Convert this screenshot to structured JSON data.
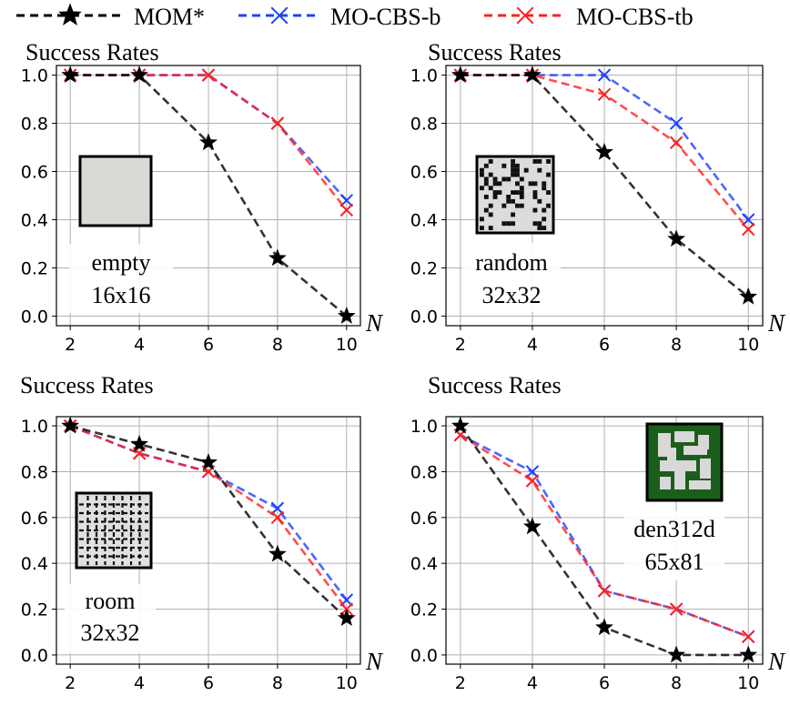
{
  "legend": {
    "entries": [
      {
        "name": "MOM*",
        "color": "#000000",
        "marker": "star-icon"
      },
      {
        "name": "MO-CBS-b",
        "color": "#2040ff",
        "marker": "x-icon"
      },
      {
        "name": "MO-CBS-tb",
        "color": "#ff2020",
        "marker": "x-icon"
      }
    ]
  },
  "chart_data": [
    {
      "type": "line",
      "title": "Success Rates",
      "xlabel": "N",
      "x": [
        2,
        4,
        6,
        8,
        10
      ],
      "ylim": [
        0,
        1.0
      ],
      "yticks": [
        "0.0",
        "0.2",
        "0.4",
        "0.6",
        "0.8",
        "1.0"
      ],
      "xticks": [
        "2",
        "4",
        "6",
        "8",
        "10"
      ],
      "map_label": [
        "empty",
        "16x16"
      ],
      "map_icon": "empty-map-icon",
      "series": [
        {
          "name": "MOM*",
          "values": [
            1.0,
            1.0,
            0.72,
            0.24,
            0.0
          ]
        },
        {
          "name": "MO-CBS-b",
          "values": [
            1.0,
            1.0,
            1.0,
            0.8,
            0.48
          ]
        },
        {
          "name": "MO-CBS-tb",
          "values": [
            1.0,
            1.0,
            1.0,
            0.8,
            0.44
          ]
        }
      ]
    },
    {
      "type": "line",
      "title": "Success Rates",
      "xlabel": "N",
      "x": [
        2,
        4,
        6,
        8,
        10
      ],
      "ylim": [
        0,
        1.0
      ],
      "yticks": [
        "0.0",
        "0.2",
        "0.4",
        "0.6",
        "0.8",
        "1.0"
      ],
      "xticks": [
        "2",
        "4",
        "6",
        "8",
        "10"
      ],
      "map_label": [
        "random",
        "32x32"
      ],
      "map_icon": "random-map-icon",
      "series": [
        {
          "name": "MOM*",
          "values": [
            1.0,
            1.0,
            0.68,
            0.32,
            0.08
          ]
        },
        {
          "name": "MO-CBS-b",
          "values": [
            1.0,
            1.0,
            1.0,
            0.8,
            0.4
          ]
        },
        {
          "name": "MO-CBS-tb",
          "values": [
            1.0,
            1.0,
            0.92,
            0.72,
            0.36
          ]
        }
      ]
    },
    {
      "type": "line",
      "title": "Success Rates",
      "xlabel": "N",
      "x": [
        2,
        4,
        6,
        8,
        10
      ],
      "ylim": [
        0,
        1.0
      ],
      "yticks": [
        "0.0",
        "0.2",
        "0.4",
        "0.6",
        "0.8",
        "1.0"
      ],
      "xticks": [
        "2",
        "4",
        "6",
        "8",
        "10"
      ],
      "map_label": [
        "room",
        "32x32"
      ],
      "map_icon": "room-map-icon",
      "series": [
        {
          "name": "MOM*",
          "values": [
            1.0,
            0.92,
            0.84,
            0.44,
            0.16
          ]
        },
        {
          "name": "MO-CBS-b",
          "values": [
            1.0,
            0.88,
            0.8,
            0.64,
            0.24
          ]
        },
        {
          "name": "MO-CBS-tb",
          "values": [
            1.0,
            0.88,
            0.8,
            0.6,
            0.2
          ]
        }
      ]
    },
    {
      "type": "line",
      "title": "Success Rates",
      "xlabel": "N",
      "x": [
        2,
        4,
        6,
        8,
        10
      ],
      "ylim": [
        0,
        1.0
      ],
      "yticks": [
        "0.0",
        "0.2",
        "0.4",
        "0.6",
        "0.8",
        "1.0"
      ],
      "xticks": [
        "2",
        "4",
        "6",
        "8",
        "10"
      ],
      "map_label": [
        "den312d",
        "65x81"
      ],
      "map_icon": "den312d-map-icon",
      "series": [
        {
          "name": "MOM*",
          "values": [
            1.0,
            0.56,
            0.12,
            0.0,
            0.0
          ]
        },
        {
          "name": "MO-CBS-b",
          "values": [
            0.96,
            0.8,
            0.28,
            0.2,
            0.08
          ]
        },
        {
          "name": "MO-CBS-tb",
          "values": [
            0.96,
            0.76,
            0.28,
            0.2,
            0.08
          ]
        }
      ]
    }
  ]
}
